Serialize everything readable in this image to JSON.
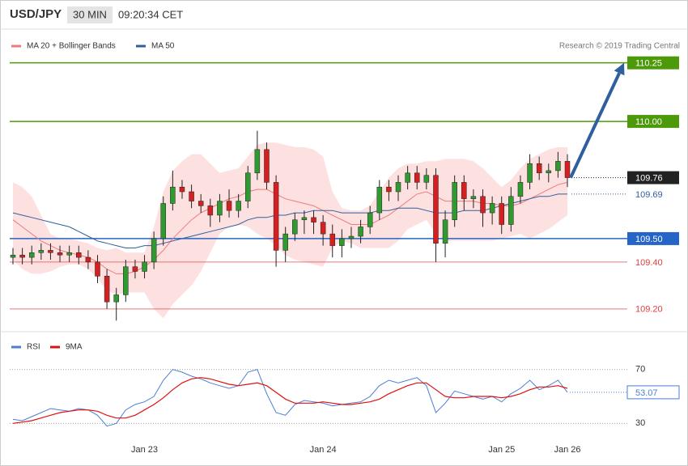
{
  "chart_data": [
    {
      "type": "candlestick",
      "title": "USD/JPY",
      "timeframe": "30 MIN",
      "time": "09:20:34 CET",
      "source": "Research © 2019 Trading Central",
      "up_color": "#2f9a2f",
      "down_color": "#d42020",
      "open": [
        109.42,
        109.43,
        109.42,
        109.44,
        109.45,
        109.44,
        109.43,
        109.44,
        109.42,
        109.4,
        109.34,
        109.23,
        109.26,
        109.38,
        109.36,
        109.4,
        109.5,
        109.65,
        109.72,
        109.7,
        109.66,
        109.64,
        109.6,
        109.66,
        109.62,
        109.66,
        109.78,
        109.88,
        109.74,
        109.45,
        109.52,
        109.58,
        109.59,
        109.57,
        109.52,
        109.47,
        109.5,
        109.51,
        109.55,
        109.61,
        109.72,
        109.7,
        109.74,
        109.78,
        109.74,
        109.77,
        109.48,
        109.58,
        109.74,
        109.67,
        109.68,
        109.61,
        109.65,
        109.56,
        109.68,
        109.74,
        109.82,
        109.78,
        109.79,
        109.83
      ],
      "high": [
        109.46,
        109.46,
        109.47,
        109.48,
        109.48,
        109.47,
        109.47,
        109.47,
        109.45,
        109.43,
        109.37,
        109.29,
        109.41,
        109.41,
        109.43,
        109.53,
        109.68,
        109.79,
        109.75,
        109.73,
        109.69,
        109.67,
        109.69,
        109.71,
        109.69,
        109.81,
        109.96,
        109.91,
        109.77,
        109.55,
        109.61,
        109.62,
        109.62,
        109.6,
        109.56,
        109.54,
        109.55,
        109.58,
        109.64,
        109.75,
        109.75,
        109.77,
        109.81,
        109.81,
        109.8,
        109.8,
        109.62,
        109.77,
        109.77,
        109.71,
        109.71,
        109.68,
        109.68,
        109.72,
        109.77,
        109.86,
        109.85,
        109.82,
        109.87,
        109.86
      ],
      "low": [
        109.39,
        109.39,
        109.39,
        109.41,
        109.41,
        109.4,
        109.4,
        109.39,
        109.37,
        109.31,
        109.2,
        109.15,
        109.23,
        109.33,
        109.33,
        109.37,
        109.47,
        109.62,
        109.67,
        109.63,
        109.61,
        109.55,
        109.57,
        109.59,
        109.59,
        109.63,
        109.75,
        109.71,
        109.38,
        109.4,
        109.49,
        109.52,
        109.52,
        109.47,
        109.42,
        109.42,
        109.46,
        109.48,
        109.52,
        109.58,
        109.66,
        109.66,
        109.71,
        109.71,
        109.71,
        109.4,
        109.42,
        109.55,
        109.62,
        109.63,
        109.55,
        109.56,
        109.52,
        109.53,
        109.65,
        109.71,
        109.75,
        109.74,
        109.76,
        109.72
      ],
      "close": [
        109.43,
        109.42,
        109.44,
        109.45,
        109.44,
        109.43,
        109.44,
        109.42,
        109.4,
        109.34,
        109.23,
        109.26,
        109.38,
        109.36,
        109.4,
        109.5,
        109.65,
        109.72,
        109.7,
        109.66,
        109.64,
        109.6,
        109.66,
        109.62,
        109.66,
        109.78,
        109.88,
        109.74,
        109.45,
        109.52,
        109.58,
        109.59,
        109.57,
        109.52,
        109.47,
        109.5,
        109.51,
        109.55,
        109.61,
        109.72,
        109.7,
        109.74,
        109.78,
        109.74,
        109.77,
        109.48,
        109.58,
        109.74,
        109.67,
        109.68,
        109.61,
        109.65,
        109.56,
        109.68,
        109.74,
        109.82,
        109.78,
        109.79,
        109.83,
        109.76
      ],
      "series": [
        {
          "name": "MA 20 + Bollinger Bands",
          "color": "#ee7a7a",
          "band_color": "#fde1e1",
          "values": [
            109.58,
            109.55,
            109.52,
            109.49,
            109.47,
            109.45,
            109.44,
            109.43,
            109.42,
            109.4,
            109.37,
            109.35,
            109.35,
            109.36,
            109.38,
            109.41,
            109.45,
            109.5,
            109.54,
            109.58,
            109.61,
            109.63,
            109.65,
            109.67,
            109.68,
            109.7,
            109.71,
            109.71,
            109.69,
            109.67,
            109.66,
            109.65,
            109.64,
            109.62,
            109.6,
            109.58,
            109.56,
            109.56,
            109.56,
            109.58,
            109.6,
            109.63,
            109.66,
            109.69,
            109.7,
            109.68,
            109.66,
            109.66,
            109.66,
            109.66,
            109.65,
            109.65,
            109.64,
            109.64,
            109.65,
            109.67,
            109.69,
            109.71,
            109.73,
            109.74
          ],
          "upper": [
            109.74,
            109.72,
            109.68,
            109.6,
            109.52,
            109.5,
            109.5,
            109.49,
            109.48,
            109.46,
            109.45,
            109.46,
            109.44,
            109.44,
            109.44,
            109.55,
            109.7,
            109.79,
            109.83,
            109.86,
            109.86,
            109.82,
            109.78,
            109.79,
            109.8,
            109.85,
            109.9,
            109.91,
            109.91,
            109.9,
            109.89,
            109.89,
            109.88,
            109.85,
            109.7,
            109.63,
            109.62,
            109.62,
            109.64,
            109.7,
            109.76,
            109.8,
            109.82,
            109.82,
            109.83,
            109.83,
            109.84,
            109.84,
            109.84,
            109.83,
            109.8,
            109.76,
            109.72,
            109.75,
            109.8,
            109.84,
            109.86,
            109.88,
            109.89,
            109.89
          ],
          "lower": [
            109.41,
            109.37,
            109.35,
            109.35,
            109.36,
            109.38,
            109.39,
            109.39,
            109.37,
            109.33,
            109.28,
            109.26,
            109.27,
            109.27,
            109.27,
            109.2,
            109.16,
            109.22,
            109.26,
            109.3,
            109.36,
            109.44,
            109.52,
            109.55,
            109.56,
            109.55,
            109.52,
            109.5,
            109.47,
            109.43,
            109.41,
            109.4,
            109.39,
            109.38,
            109.46,
            109.49,
            109.48,
            109.46,
            109.46,
            109.46,
            109.46,
            109.49,
            109.54,
            109.56,
            109.58,
            109.52,
            109.49,
            109.49,
            109.49,
            109.49,
            109.49,
            109.49,
            109.5,
            109.51,
            109.52,
            109.5,
            109.52,
            109.54,
            109.57,
            109.6
          ]
        },
        {
          "name": "MA 50",
          "color": "#2f5f9e",
          "values": [
            109.61,
            109.6,
            109.59,
            109.58,
            109.57,
            109.56,
            109.55,
            109.53,
            109.51,
            109.49,
            109.48,
            109.47,
            109.46,
            109.46,
            109.47,
            109.47,
            109.48,
            109.49,
            109.5,
            109.51,
            109.52,
            109.53,
            109.54,
            109.55,
            109.56,
            109.58,
            109.59,
            109.59,
            109.6,
            109.6,
            109.61,
            109.61,
            109.62,
            109.62,
            109.62,
            109.61,
            109.61,
            109.61,
            109.61,
            109.62,
            109.62,
            109.63,
            109.63,
            109.63,
            109.62,
            109.61,
            109.61,
            109.61,
            109.62,
            109.62,
            109.62,
            109.63,
            109.64,
            109.65,
            109.66,
            109.67,
            109.68,
            109.68,
            109.69,
            109.69
          ]
        }
      ],
      "levels": [
        {
          "value": 110.25,
          "label": "110.25",
          "color": "#4c9a0a",
          "line": "solid",
          "box": true
        },
        {
          "value": 110.0,
          "label": "110.00",
          "color": "#4c9a0a",
          "line": "solid",
          "box": true
        },
        {
          "value": 109.76,
          "label": "109.76",
          "color": "#222222",
          "line": "dotted",
          "box": true
        },
        {
          "value": 109.69,
          "label": "109.69",
          "color": "#2f5f9e",
          "line": "dotted",
          "box": false
        },
        {
          "value": 109.5,
          "label": "109.50",
          "color": "#2565c7",
          "line": "solid",
          "box": true
        },
        {
          "value": 109.4,
          "label": "109.40",
          "color": "#e04040",
          "line": "solid",
          "box": false
        },
        {
          "value": 109.2,
          "label": "109.20",
          "color": "#e04040",
          "line": "solid",
          "box": false
        }
      ],
      "ylim": [
        109.12,
        110.38
      ]
    },
    {
      "type": "line",
      "series": [
        {
          "name": "RSI",
          "color": "#4a7fd4",
          "values": [
            33,
            32,
            35,
            38,
            41,
            40,
            39,
            41,
            40,
            36,
            28,
            30,
            40,
            44,
            46,
            50,
            62,
            70,
            68,
            65,
            63,
            60,
            58,
            56,
            58,
            68,
            70,
            52,
            38,
            36,
            44,
            47,
            46,
            45,
            43,
            44,
            45,
            46,
            50,
            58,
            62,
            60,
            62,
            64,
            58,
            38,
            45,
            54,
            52,
            50,
            48,
            50,
            46,
            52,
            56,
            62,
            55,
            58,
            62,
            53.07
          ]
        },
        {
          "name": "9MA",
          "color": "#e01010",
          "values": [
            30,
            31,
            32,
            34,
            36,
            38,
            39,
            40,
            40,
            39,
            36,
            34,
            34,
            36,
            40,
            44,
            49,
            55,
            60,
            63,
            64,
            63,
            61,
            59,
            58,
            59,
            60,
            58,
            53,
            48,
            45,
            45,
            45,
            46,
            45,
            44,
            44,
            45,
            46,
            48,
            52,
            55,
            58,
            60,
            60,
            55,
            50,
            49,
            49,
            50,
            50,
            50,
            49,
            50,
            52,
            55,
            57,
            57,
            58,
            56
          ]
        }
      ],
      "ylim": [
        17,
        92
      ],
      "yticks": [
        30,
        70
      ],
      "xticks": [
        {
          "value": 14,
          "label": "Jan 23"
        },
        {
          "value": 33,
          "label": "Jan 24"
        },
        {
          "value": 52,
          "label": "Jan 25"
        },
        {
          "value": 59,
          "label": "Jan 26"
        }
      ]
    }
  ]
}
